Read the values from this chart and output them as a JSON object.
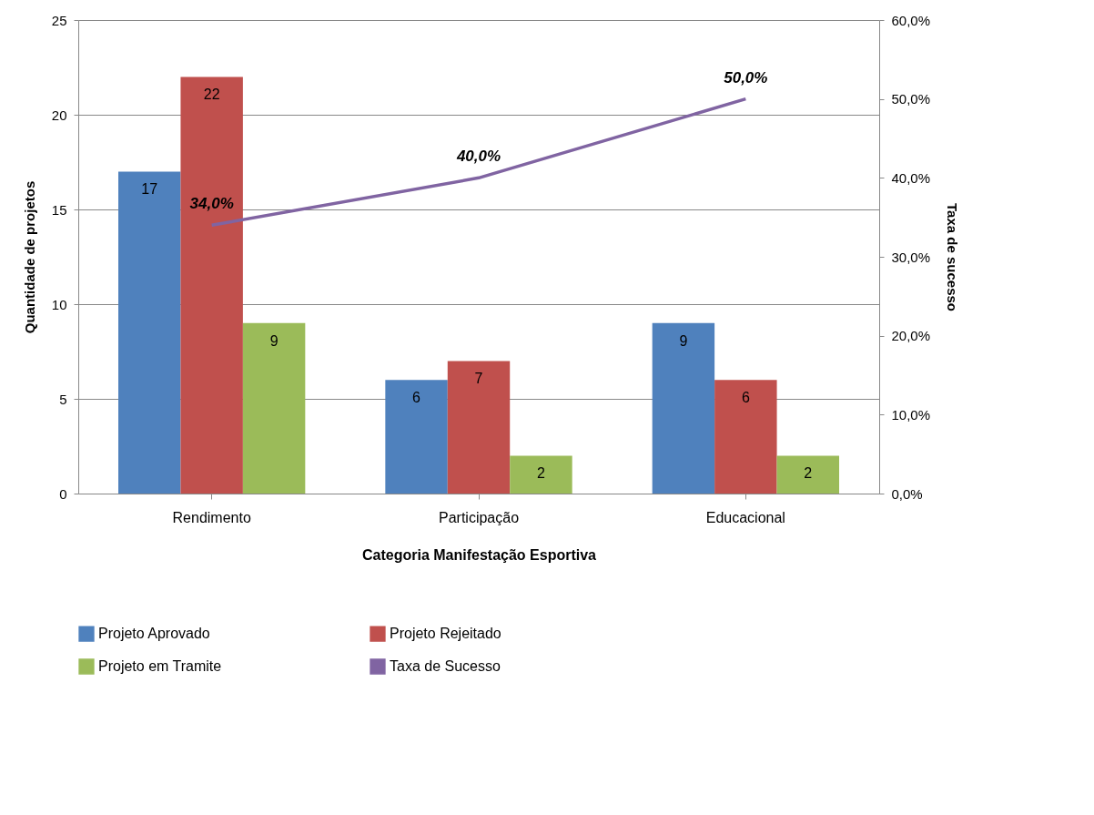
{
  "chart_data": {
    "type": "bar",
    "xlabel": "Categoria Manifestação Esportiva",
    "ylabel": "Quantidade de projetos",
    "y2label": "Taxa de sucesso",
    "categories": [
      "Rendimento",
      "Participação",
      "Educacional"
    ],
    "series": [
      {
        "name": "Projeto Aprovado",
        "color": "#4f81bd",
        "values": [
          17,
          6,
          9
        ],
        "value_labels": [
          "17",
          "6",
          "9"
        ]
      },
      {
        "name": "Projeto Rejeitado",
        "color": "#c0504d",
        "values": [
          22,
          7,
          6
        ],
        "value_labels": [
          "22",
          "7",
          "6"
        ]
      },
      {
        "name": "Projeto em Tramite",
        "color": "#9bbb59",
        "values": [
          9,
          2,
          2
        ],
        "value_labels": [
          "9",
          "2",
          "2"
        ]
      },
      {
        "name": "Taxa de Sucesso",
        "color": "#8064a2",
        "type": "line",
        "axis": "y2",
        "values": [
          34,
          40,
          50
        ],
        "value_labels": [
          "34,0%",
          "40,0%",
          "50,0%"
        ]
      }
    ],
    "ylim": [
      0,
      25
    ],
    "yticks": [
      0,
      5,
      10,
      15,
      20,
      25
    ],
    "y2lim": [
      0,
      60
    ],
    "y2ticks": [
      {
        "value": 0,
        "label": "0,0%"
      },
      {
        "value": 10,
        "label": "10,0%"
      },
      {
        "value": 20,
        "label": "20,0%"
      },
      {
        "value": 30,
        "label": "30,0%"
      },
      {
        "value": 40,
        "label": "40,0%"
      },
      {
        "value": 50,
        "label": "50,0%"
      },
      {
        "value": 60,
        "label": "60,0%"
      }
    ],
    "grid": "y",
    "legend": "bottom",
    "marker": "none",
    "line_style": "solid"
  }
}
